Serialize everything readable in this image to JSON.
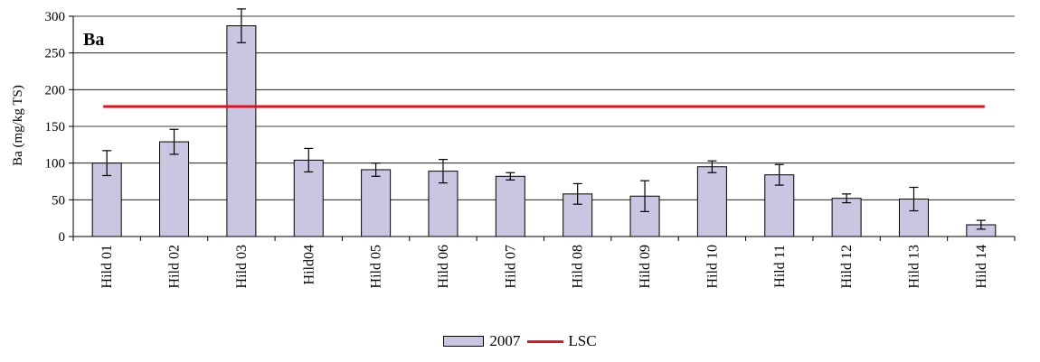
{
  "chart_data": {
    "type": "bar",
    "title": "Ba",
    "ylabel": "Ba (mg/kg TS)",
    "xlabel": "",
    "ylim": [
      0,
      300
    ],
    "yticks": [
      0,
      50,
      100,
      150,
      200,
      250,
      300
    ],
    "categories": [
      "Hild 01",
      "Hild 02",
      "Hild 03",
      "Hild04",
      "Hild 05",
      "Hild 06",
      "Hild 07",
      "Hild 08",
      "Hild 09",
      "Hild 10",
      "Hild 11",
      "Hild 12",
      "Hild 13",
      "Hild 14"
    ],
    "series": [
      {
        "name": "2007",
        "type": "bar",
        "color": "#c8c6e0",
        "values": [
          100,
          129,
          287,
          104,
          91,
          89,
          82,
          58,
          55,
          95,
          84,
          52,
          51,
          16
        ],
        "error": [
          17,
          17,
          23,
          16,
          9,
          16,
          5,
          14,
          21,
          8,
          14,
          6,
          16,
          6
        ]
      },
      {
        "name": "LSC",
        "type": "line",
        "color": "#e8101c",
        "value": 177
      }
    ],
    "grid": true,
    "legend_position": "bottom-center"
  }
}
